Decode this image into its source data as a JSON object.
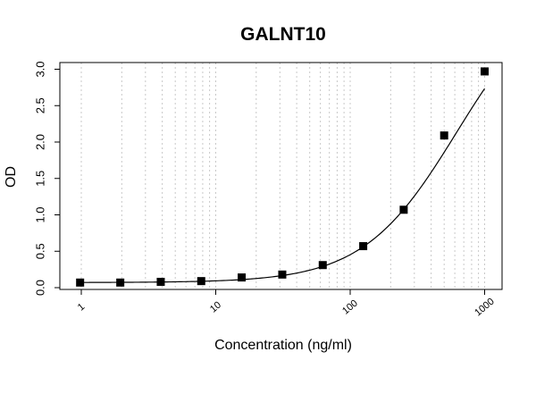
{
  "chart_data": {
    "type": "scatter",
    "title": "GALNT10",
    "xlabel": "Concentration (ng/ml)",
    "ylabel": "OD",
    "x_scale": "log",
    "xlim": [
      0.8,
      1200
    ],
    "ylim": [
      -0.05,
      3.05
    ],
    "x_ticks": [
      1,
      10,
      100,
      1000
    ],
    "x_tick_labels": [
      "1",
      "10",
      "100",
      "1000"
    ],
    "y_ticks": [
      0.0,
      0.5,
      1.0,
      1.5,
      2.0,
      2.5,
      3.0
    ],
    "y_tick_labels": [
      "0.0",
      "0.5",
      "1.0",
      "1.5",
      "2.0",
      "2.5",
      "3.0"
    ],
    "grid": "vertical dotted at log minor ticks",
    "marker": "filled square",
    "points": [
      {
        "x": 0.98,
        "y": 0.07
      },
      {
        "x": 1.95,
        "y": 0.07
      },
      {
        "x": 3.9,
        "y": 0.08
      },
      {
        "x": 7.8,
        "y": 0.09
      },
      {
        "x": 15.6,
        "y": 0.14
      },
      {
        "x": 31.25,
        "y": 0.18
      },
      {
        "x": 62.5,
        "y": 0.31
      },
      {
        "x": 125,
        "y": 0.57
      },
      {
        "x": 250,
        "y": 1.07
      },
      {
        "x": 500,
        "y": 2.09
      },
      {
        "x": 1000,
        "y": 2.97
      }
    ],
    "fit_curve": "4-parameter logistic"
  }
}
